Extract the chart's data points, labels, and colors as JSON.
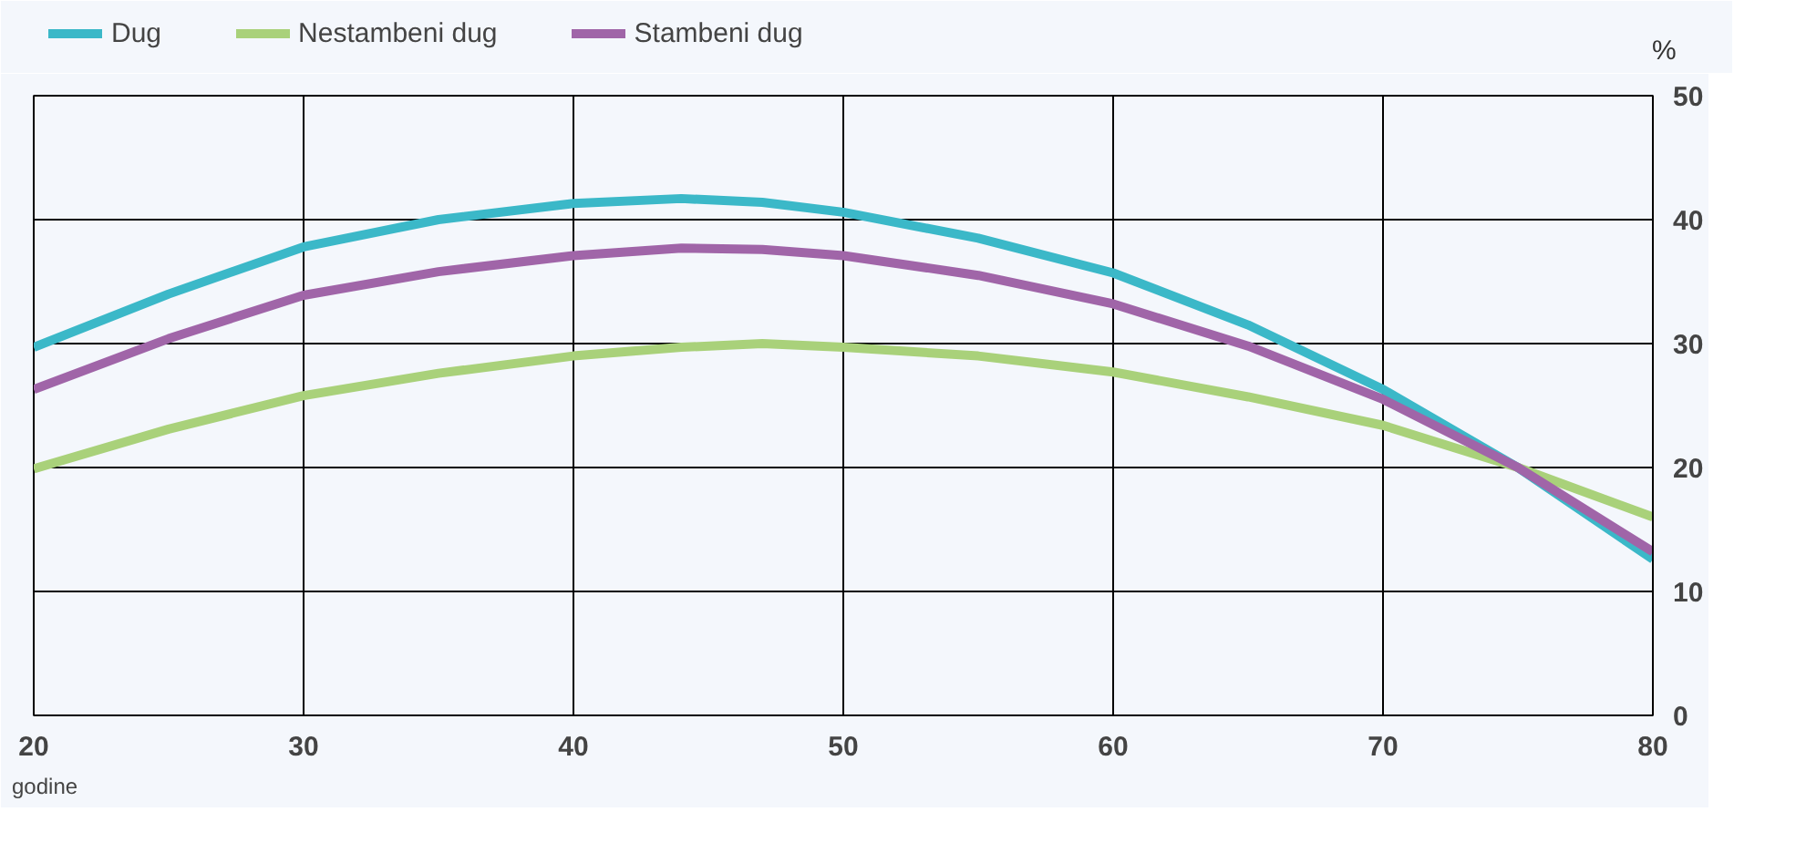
{
  "chart_data": {
    "type": "line",
    "xlabel": "godine",
    "ylabel": "%",
    "x": [
      20,
      25,
      30,
      35,
      40,
      44,
      47,
      50,
      55,
      60,
      65,
      70,
      75,
      80
    ],
    "series": [
      {
        "name": "Dug",
        "color": "#3bb8c8",
        "values": [
          29.7,
          34,
          37.8,
          40,
          41.3,
          41.7,
          41.4,
          40.6,
          38.5,
          35.7,
          31.5,
          26.3,
          20,
          12.6
        ]
      },
      {
        "name": "Nestambeni dug",
        "color": "#a9d17a",
        "values": [
          19.9,
          23.1,
          25.8,
          27.6,
          29,
          29.7,
          30,
          29.7,
          29,
          27.7,
          25.7,
          23.4,
          20,
          16
        ]
      },
      {
        "name": "Stambeni dug",
        "color": "#a065a8",
        "values": [
          26.3,
          30.4,
          33.9,
          35.8,
          37.1,
          37.7,
          37.6,
          37.1,
          35.5,
          33.2,
          29.8,
          25.5,
          20,
          13.2
        ]
      }
    ],
    "xlim": [
      20,
      80
    ],
    "ylim": [
      0,
      50
    ],
    "xticks": [
      20,
      30,
      40,
      50,
      60,
      70,
      80
    ],
    "yticks": [
      0,
      10,
      20,
      30,
      40,
      50
    ],
    "grid": true,
    "legend": "top left",
    "marker": "none",
    "line_style": "solid"
  }
}
